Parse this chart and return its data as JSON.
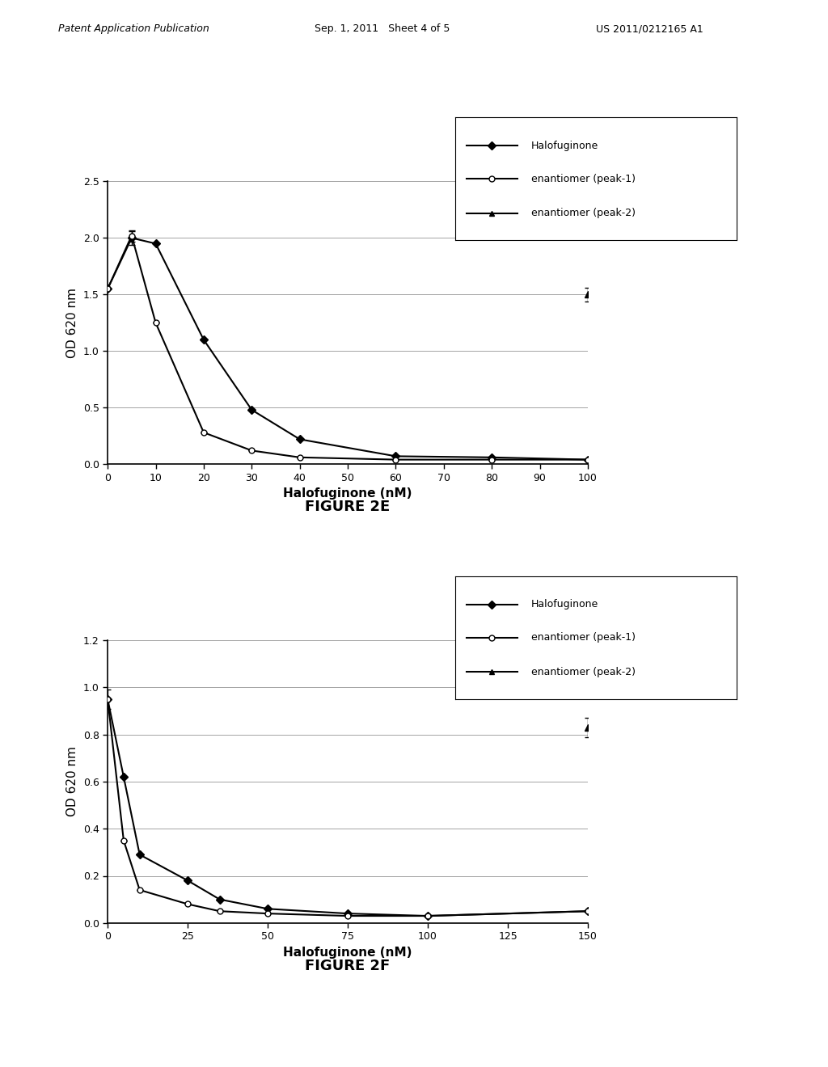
{
  "header_left": "Patent Application Publication",
  "header_mid": "Sep. 1, 2011   Sheet 4 of 5",
  "header_right": "US 2011/0212165 A1",
  "fig2e": {
    "title": "FIGURE 2E",
    "xlabel": "Halofuginone (nM)",
    "ylabel": "OD 620 nm",
    "xlim": [
      0,
      100
    ],
    "ylim": [
      0,
      2.5
    ],
    "xticks": [
      0,
      10,
      20,
      30,
      40,
      50,
      60,
      70,
      80,
      90,
      100
    ],
    "yticks": [
      0,
      0.5,
      1.0,
      1.5,
      2.0,
      2.5
    ],
    "halofuginone_x": [
      0,
      5,
      10,
      20,
      30,
      40,
      60,
      80,
      100
    ],
    "halofuginone_y": [
      1.55,
      2.0,
      1.95,
      1.1,
      0.48,
      0.22,
      0.07,
      0.06,
      0.04
    ],
    "halofuginone_yerr": [
      0.0,
      0.06,
      0.0,
      0.0,
      0.0,
      0.0,
      0.0,
      0.0,
      0.0
    ],
    "peak1_x": [
      0,
      5,
      10,
      20,
      30,
      40,
      60,
      80,
      100
    ],
    "peak1_y": [
      1.55,
      2.02,
      1.25,
      0.28,
      0.12,
      0.06,
      0.04,
      0.04,
      0.04
    ],
    "peak1_yerr": [
      0.0,
      0.05,
      0.0,
      0.0,
      0.0,
      0.0,
      0.0,
      0.0,
      0.0
    ],
    "peak2_x": [
      100
    ],
    "peak2_y": [
      1.5
    ],
    "peak2_yerr": [
      0.06
    ]
  },
  "fig2f": {
    "title": "FIGURE 2F",
    "xlabel": "Halofuginone (nM)",
    "ylabel": "OD 620 nm",
    "xlim": [
      0,
      150
    ],
    "ylim": [
      0,
      1.2
    ],
    "xticks": [
      0,
      25,
      50,
      75,
      100,
      125,
      150
    ],
    "yticks": [
      0,
      0.2,
      0.4,
      0.6,
      0.8,
      1.0,
      1.2
    ],
    "halofuginone_x": [
      0,
      5,
      10,
      25,
      35,
      50,
      75,
      100,
      150
    ],
    "halofuginone_y": [
      0.95,
      0.62,
      0.29,
      0.18,
      0.1,
      0.06,
      0.04,
      0.03,
      0.05
    ],
    "halofuginone_yerr": [
      0.04,
      0.0,
      0.0,
      0.0,
      0.0,
      0.0,
      0.0,
      0.0,
      0.0
    ],
    "peak1_x": [
      0,
      5,
      10,
      25,
      35,
      50,
      75,
      100,
      150
    ],
    "peak1_y": [
      0.95,
      0.35,
      0.14,
      0.08,
      0.05,
      0.04,
      0.03,
      0.03,
      0.05
    ],
    "peak1_yerr": [
      0.0,
      0.0,
      0.0,
      0.0,
      0.0,
      0.0,
      0.0,
      0.0,
      0.0
    ],
    "peak2_x": [
      150
    ],
    "peak2_y": [
      0.83
    ],
    "peak2_yerr": [
      0.04
    ]
  },
  "legend_entries": [
    "Halofuginone",
    "enantiomer (peak-1)",
    "enantiomer (peak-2)"
  ],
  "background_color": "#ffffff",
  "font_size_header": 9,
  "font_size_axis_label": 11,
  "font_size_tick": 9,
  "font_size_legend": 9,
  "font_size_figure_label": 13
}
